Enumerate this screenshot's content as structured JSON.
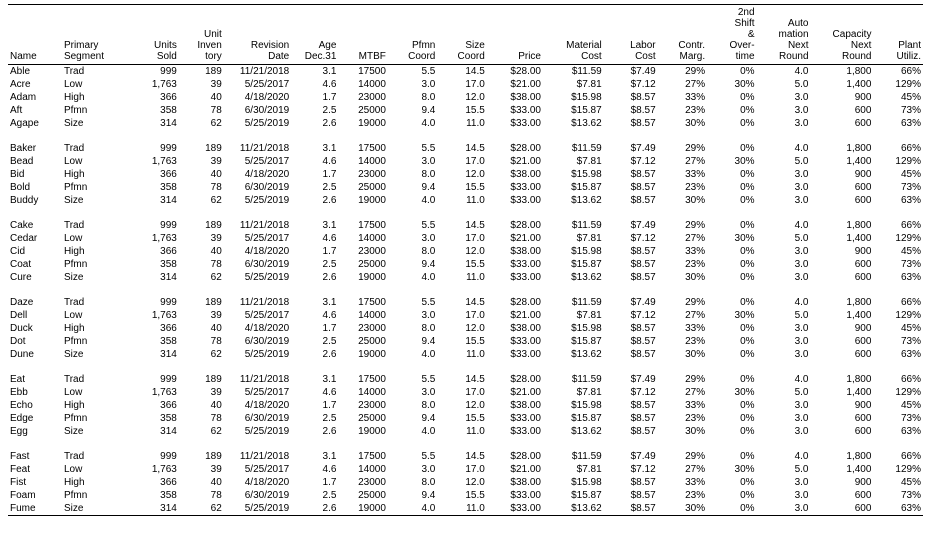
{
  "columns": [
    {
      "key": "name",
      "label": "Name",
      "align": "left"
    },
    {
      "key": "segment",
      "label": "Primary\nSegment",
      "align": "left"
    },
    {
      "key": "units_sold",
      "label": "Units\nSold",
      "align": "right"
    },
    {
      "key": "inventory",
      "label": "Unit\nInven\ntory",
      "align": "right"
    },
    {
      "key": "revision",
      "label": "Revision\nDate",
      "align": "right"
    },
    {
      "key": "age",
      "label": "Age\nDec.31",
      "align": "right"
    },
    {
      "key": "mtbf",
      "label": "MTBF",
      "align": "right"
    },
    {
      "key": "pfmn",
      "label": "Pfmn\nCoord",
      "align": "right"
    },
    {
      "key": "size",
      "label": "Size\nCoord",
      "align": "right"
    },
    {
      "key": "price",
      "label": "Price",
      "align": "right"
    },
    {
      "key": "material",
      "label": "Material\nCost",
      "align": "right"
    },
    {
      "key": "labor",
      "label": "Labor\nCost",
      "align": "right"
    },
    {
      "key": "margin",
      "label": "Contr.\nMarg.",
      "align": "right"
    },
    {
      "key": "overtime",
      "label": "2nd\nShift\n&\nOver-\ntime",
      "align": "right"
    },
    {
      "key": "automation",
      "label": "Auto\nmation\nNext\nRound",
      "align": "right"
    },
    {
      "key": "capacity",
      "label": "Capacity\nNext\nRound",
      "align": "right"
    },
    {
      "key": "utilization",
      "label": "Plant\nUtiliz.",
      "align": "right"
    }
  ],
  "groups": [
    [
      {
        "name": "Able",
        "segment": "Trad",
        "units_sold": "999",
        "inventory": "189",
        "revision": "11/21/2018",
        "age": "3.1",
        "mtbf": "17500",
        "pfmn": "5.5",
        "size": "14.5",
        "price": "$28.00",
        "material": "$11.59",
        "labor": "$7.49",
        "margin": "29%",
        "overtime": "0%",
        "automation": "4.0",
        "capacity": "1,800",
        "utilization": "66%"
      },
      {
        "name": "Acre",
        "segment": "Low",
        "units_sold": "1,763",
        "inventory": "39",
        "revision": "5/25/2017",
        "age": "4.6",
        "mtbf": "14000",
        "pfmn": "3.0",
        "size": "17.0",
        "price": "$21.00",
        "material": "$7.81",
        "labor": "$7.12",
        "margin": "27%",
        "overtime": "30%",
        "automation": "5.0",
        "capacity": "1,400",
        "utilization": "129%"
      },
      {
        "name": "Adam",
        "segment": "High",
        "units_sold": "366",
        "inventory": "40",
        "revision": "4/18/2020",
        "age": "1.7",
        "mtbf": "23000",
        "pfmn": "8.0",
        "size": "12.0",
        "price": "$38.00",
        "material": "$15.98",
        "labor": "$8.57",
        "margin": "33%",
        "overtime": "0%",
        "automation": "3.0",
        "capacity": "900",
        "utilization": "45%"
      },
      {
        "name": "Aft",
        "segment": "Pfmn",
        "units_sold": "358",
        "inventory": "78",
        "revision": "6/30/2019",
        "age": "2.5",
        "mtbf": "25000",
        "pfmn": "9.4",
        "size": "15.5",
        "price": "$33.00",
        "material": "$15.87",
        "labor": "$8.57",
        "margin": "23%",
        "overtime": "0%",
        "automation": "3.0",
        "capacity": "600",
        "utilization": "73%"
      },
      {
        "name": "Agape",
        "segment": "Size",
        "units_sold": "314",
        "inventory": "62",
        "revision": "5/25/2019",
        "age": "2.6",
        "mtbf": "19000",
        "pfmn": "4.0",
        "size": "11.0",
        "price": "$33.00",
        "material": "$13.62",
        "labor": "$8.57",
        "margin": "30%",
        "overtime": "0%",
        "automation": "3.0",
        "capacity": "600",
        "utilization": "63%"
      }
    ],
    [
      {
        "name": "Baker",
        "segment": "Trad",
        "units_sold": "999",
        "inventory": "189",
        "revision": "11/21/2018",
        "age": "3.1",
        "mtbf": "17500",
        "pfmn": "5.5",
        "size": "14.5",
        "price": "$28.00",
        "material": "$11.59",
        "labor": "$7.49",
        "margin": "29%",
        "overtime": "0%",
        "automation": "4.0",
        "capacity": "1,800",
        "utilization": "66%"
      },
      {
        "name": "Bead",
        "segment": "Low",
        "units_sold": "1,763",
        "inventory": "39",
        "revision": "5/25/2017",
        "age": "4.6",
        "mtbf": "14000",
        "pfmn": "3.0",
        "size": "17.0",
        "price": "$21.00",
        "material": "$7.81",
        "labor": "$7.12",
        "margin": "27%",
        "overtime": "30%",
        "automation": "5.0",
        "capacity": "1,400",
        "utilization": "129%"
      },
      {
        "name": "Bid",
        "segment": "High",
        "units_sold": "366",
        "inventory": "40",
        "revision": "4/18/2020",
        "age": "1.7",
        "mtbf": "23000",
        "pfmn": "8.0",
        "size": "12.0",
        "price": "$38.00",
        "material": "$15.98",
        "labor": "$8.57",
        "margin": "33%",
        "overtime": "0%",
        "automation": "3.0",
        "capacity": "900",
        "utilization": "45%"
      },
      {
        "name": "Bold",
        "segment": "Pfmn",
        "units_sold": "358",
        "inventory": "78",
        "revision": "6/30/2019",
        "age": "2.5",
        "mtbf": "25000",
        "pfmn": "9.4",
        "size": "15.5",
        "price": "$33.00",
        "material": "$15.87",
        "labor": "$8.57",
        "margin": "23%",
        "overtime": "0%",
        "automation": "3.0",
        "capacity": "600",
        "utilization": "73%"
      },
      {
        "name": "Buddy",
        "segment": "Size",
        "units_sold": "314",
        "inventory": "62",
        "revision": "5/25/2019",
        "age": "2.6",
        "mtbf": "19000",
        "pfmn": "4.0",
        "size": "11.0",
        "price": "$33.00",
        "material": "$13.62",
        "labor": "$8.57",
        "margin": "30%",
        "overtime": "0%",
        "automation": "3.0",
        "capacity": "600",
        "utilization": "63%"
      }
    ],
    [
      {
        "name": "Cake",
        "segment": "Trad",
        "units_sold": "999",
        "inventory": "189",
        "revision": "11/21/2018",
        "age": "3.1",
        "mtbf": "17500",
        "pfmn": "5.5",
        "size": "14.5",
        "price": "$28.00",
        "material": "$11.59",
        "labor": "$7.49",
        "margin": "29%",
        "overtime": "0%",
        "automation": "4.0",
        "capacity": "1,800",
        "utilization": "66%"
      },
      {
        "name": "Cedar",
        "segment": "Low",
        "units_sold": "1,763",
        "inventory": "39",
        "revision": "5/25/2017",
        "age": "4.6",
        "mtbf": "14000",
        "pfmn": "3.0",
        "size": "17.0",
        "price": "$21.00",
        "material": "$7.81",
        "labor": "$7.12",
        "margin": "27%",
        "overtime": "30%",
        "automation": "5.0",
        "capacity": "1,400",
        "utilization": "129%"
      },
      {
        "name": "Cid",
        "segment": "High",
        "units_sold": "366",
        "inventory": "40",
        "revision": "4/18/2020",
        "age": "1.7",
        "mtbf": "23000",
        "pfmn": "8.0",
        "size": "12.0",
        "price": "$38.00",
        "material": "$15.98",
        "labor": "$8.57",
        "margin": "33%",
        "overtime": "0%",
        "automation": "3.0",
        "capacity": "900",
        "utilization": "45%"
      },
      {
        "name": "Coat",
        "segment": "Pfmn",
        "units_sold": "358",
        "inventory": "78",
        "revision": "6/30/2019",
        "age": "2.5",
        "mtbf": "25000",
        "pfmn": "9.4",
        "size": "15.5",
        "price": "$33.00",
        "material": "$15.87",
        "labor": "$8.57",
        "margin": "23%",
        "overtime": "0%",
        "automation": "3.0",
        "capacity": "600",
        "utilization": "73%"
      },
      {
        "name": "Cure",
        "segment": "Size",
        "units_sold": "314",
        "inventory": "62",
        "revision": "5/25/2019",
        "age": "2.6",
        "mtbf": "19000",
        "pfmn": "4.0",
        "size": "11.0",
        "price": "$33.00",
        "material": "$13.62",
        "labor": "$8.57",
        "margin": "30%",
        "overtime": "0%",
        "automation": "3.0",
        "capacity": "600",
        "utilization": "63%"
      }
    ],
    [
      {
        "name": "Daze",
        "segment": "Trad",
        "units_sold": "999",
        "inventory": "189",
        "revision": "11/21/2018",
        "age": "3.1",
        "mtbf": "17500",
        "pfmn": "5.5",
        "size": "14.5",
        "price": "$28.00",
        "material": "$11.59",
        "labor": "$7.49",
        "margin": "29%",
        "overtime": "0%",
        "automation": "4.0",
        "capacity": "1,800",
        "utilization": "66%"
      },
      {
        "name": "Dell",
        "segment": "Low",
        "units_sold": "1,763",
        "inventory": "39",
        "revision": "5/25/2017",
        "age": "4.6",
        "mtbf": "14000",
        "pfmn": "3.0",
        "size": "17.0",
        "price": "$21.00",
        "material": "$7.81",
        "labor": "$7.12",
        "margin": "27%",
        "overtime": "30%",
        "automation": "5.0",
        "capacity": "1,400",
        "utilization": "129%"
      },
      {
        "name": "Duck",
        "segment": "High",
        "units_sold": "366",
        "inventory": "40",
        "revision": "4/18/2020",
        "age": "1.7",
        "mtbf": "23000",
        "pfmn": "8.0",
        "size": "12.0",
        "price": "$38.00",
        "material": "$15.98",
        "labor": "$8.57",
        "margin": "33%",
        "overtime": "0%",
        "automation": "3.0",
        "capacity": "900",
        "utilization": "45%"
      },
      {
        "name": "Dot",
        "segment": "Pfmn",
        "units_sold": "358",
        "inventory": "78",
        "revision": "6/30/2019",
        "age": "2.5",
        "mtbf": "25000",
        "pfmn": "9.4",
        "size": "15.5",
        "price": "$33.00",
        "material": "$15.87",
        "labor": "$8.57",
        "margin": "23%",
        "overtime": "0%",
        "automation": "3.0",
        "capacity": "600",
        "utilization": "73%"
      },
      {
        "name": "Dune",
        "segment": "Size",
        "units_sold": "314",
        "inventory": "62",
        "revision": "5/25/2019",
        "age": "2.6",
        "mtbf": "19000",
        "pfmn": "4.0",
        "size": "11.0",
        "price": "$33.00",
        "material": "$13.62",
        "labor": "$8.57",
        "margin": "30%",
        "overtime": "0%",
        "automation": "3.0",
        "capacity": "600",
        "utilization": "63%"
      }
    ],
    [
      {
        "name": "Eat",
        "segment": "Trad",
        "units_sold": "999",
        "inventory": "189",
        "revision": "11/21/2018",
        "age": "3.1",
        "mtbf": "17500",
        "pfmn": "5.5",
        "size": "14.5",
        "price": "$28.00",
        "material": "$11.59",
        "labor": "$7.49",
        "margin": "29%",
        "overtime": "0%",
        "automation": "4.0",
        "capacity": "1,800",
        "utilization": "66%"
      },
      {
        "name": "Ebb",
        "segment": "Low",
        "units_sold": "1,763",
        "inventory": "39",
        "revision": "5/25/2017",
        "age": "4.6",
        "mtbf": "14000",
        "pfmn": "3.0",
        "size": "17.0",
        "price": "$21.00",
        "material": "$7.81",
        "labor": "$7.12",
        "margin": "27%",
        "overtime": "30%",
        "automation": "5.0",
        "capacity": "1,400",
        "utilization": "129%"
      },
      {
        "name": "Echo",
        "segment": "High",
        "units_sold": "366",
        "inventory": "40",
        "revision": "4/18/2020",
        "age": "1.7",
        "mtbf": "23000",
        "pfmn": "8.0",
        "size": "12.0",
        "price": "$38.00",
        "material": "$15.98",
        "labor": "$8.57",
        "margin": "33%",
        "overtime": "0%",
        "automation": "3.0",
        "capacity": "900",
        "utilization": "45%"
      },
      {
        "name": "Edge",
        "segment": "Pfmn",
        "units_sold": "358",
        "inventory": "78",
        "revision": "6/30/2019",
        "age": "2.5",
        "mtbf": "25000",
        "pfmn": "9.4",
        "size": "15.5",
        "price": "$33.00",
        "material": "$15.87",
        "labor": "$8.57",
        "margin": "23%",
        "overtime": "0%",
        "automation": "3.0",
        "capacity": "600",
        "utilization": "73%"
      },
      {
        "name": "Egg",
        "segment": "Size",
        "units_sold": "314",
        "inventory": "62",
        "revision": "5/25/2019",
        "age": "2.6",
        "mtbf": "19000",
        "pfmn": "4.0",
        "size": "11.0",
        "price": "$33.00",
        "material": "$13.62",
        "labor": "$8.57",
        "margin": "30%",
        "overtime": "0%",
        "automation": "3.0",
        "capacity": "600",
        "utilization": "63%"
      }
    ],
    [
      {
        "name": "Fast",
        "segment": "Trad",
        "units_sold": "999",
        "inventory": "189",
        "revision": "11/21/2018",
        "age": "3.1",
        "mtbf": "17500",
        "pfmn": "5.5",
        "size": "14.5",
        "price": "$28.00",
        "material": "$11.59",
        "labor": "$7.49",
        "margin": "29%",
        "overtime": "0%",
        "automation": "4.0",
        "capacity": "1,800",
        "utilization": "66%"
      },
      {
        "name": "Feat",
        "segment": "Low",
        "units_sold": "1,763",
        "inventory": "39",
        "revision": "5/25/2017",
        "age": "4.6",
        "mtbf": "14000",
        "pfmn": "3.0",
        "size": "17.0",
        "price": "$21.00",
        "material": "$7.81",
        "labor": "$7.12",
        "margin": "27%",
        "overtime": "30%",
        "automation": "5.0",
        "capacity": "1,400",
        "utilization": "129%"
      },
      {
        "name": "Fist",
        "segment": "High",
        "units_sold": "366",
        "inventory": "40",
        "revision": "4/18/2020",
        "age": "1.7",
        "mtbf": "23000",
        "pfmn": "8.0",
        "size": "12.0",
        "price": "$38.00",
        "material": "$15.98",
        "labor": "$8.57",
        "margin": "33%",
        "overtime": "0%",
        "automation": "3.0",
        "capacity": "900",
        "utilization": "45%"
      },
      {
        "name": "Foam",
        "segment": "Pfmn",
        "units_sold": "358",
        "inventory": "78",
        "revision": "6/30/2019",
        "age": "2.5",
        "mtbf": "25000",
        "pfmn": "9.4",
        "size": "15.5",
        "price": "$33.00",
        "material": "$15.87",
        "labor": "$8.57",
        "margin": "23%",
        "overtime": "0%",
        "automation": "3.0",
        "capacity": "600",
        "utilization": "73%"
      },
      {
        "name": "Fume",
        "segment": "Size",
        "units_sold": "314",
        "inventory": "62",
        "revision": "5/25/2019",
        "age": "2.6",
        "mtbf": "19000",
        "pfmn": "4.0",
        "size": "11.0",
        "price": "$33.00",
        "material": "$13.62",
        "labor": "$8.57",
        "margin": "30%",
        "overtime": "0%",
        "automation": "3.0",
        "capacity": "600",
        "utilization": "63%"
      }
    ]
  ]
}
